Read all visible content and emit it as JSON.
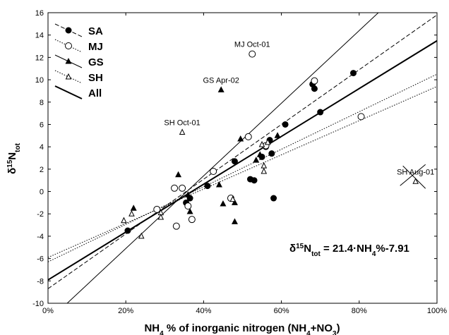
{
  "chart_data": {
    "type": "scatter",
    "xlabel": {
      "main": "NH",
      "sub1": "4",
      "mid": " % of inorganic nitrogen (NH",
      "sub2": "4",
      "tail": "+NO",
      "sub3": "3",
      "end": ")"
    },
    "ylabel": {
      "main": "δ",
      "sup": "15",
      "n": "N",
      "sub": "tot"
    },
    "xlim": [
      0,
      100
    ],
    "ylim": [
      -10,
      16
    ],
    "xticks": [
      0,
      20,
      40,
      60,
      80,
      100
    ],
    "xtick_labels": [
      "0%",
      "20%",
      "40%",
      "60%",
      "80%",
      "100%"
    ],
    "yticks": [
      -10,
      -8,
      -6,
      -4,
      -2,
      0,
      2,
      4,
      6,
      8,
      10,
      12,
      14,
      16
    ],
    "ytick_labels": [
      "-10",
      "-8",
      "-6",
      "-4",
      "-2",
      "0",
      "2",
      "4",
      "6",
      "8",
      "10",
      "12",
      "14",
      "16"
    ],
    "legend_position": "top-left",
    "grid": false,
    "series": [
      {
        "name": "SA",
        "marker": "filled-circle",
        "points": [
          [
            20.5,
            -3.5
          ],
          [
            35.5,
            -1.0
          ],
          [
            36.5,
            -0.6
          ],
          [
            41,
            0.5
          ],
          [
            48,
            2.7
          ],
          [
            52,
            1.1
          ],
          [
            53,
            1.0
          ],
          [
            55,
            3.1
          ],
          [
            56,
            4.0
          ],
          [
            57,
            4.6
          ],
          [
            57.5,
            3.4
          ],
          [
            58,
            -0.6
          ],
          [
            61,
            6.0
          ],
          [
            68,
            9.6
          ],
          [
            68.5,
            9.2
          ],
          [
            70,
            7.1
          ],
          [
            78.5,
            10.6
          ]
        ]
      },
      {
        "name": "MJ",
        "marker": "open-circle",
        "points": [
          [
            28,
            -1.6
          ],
          [
            32.5,
            0.3
          ],
          [
            33,
            -3.1
          ],
          [
            34.5,
            0.3
          ],
          [
            36,
            -1.3
          ],
          [
            37,
            -2.5
          ],
          [
            42.5,
            1.8
          ],
          [
            47,
            -0.6
          ],
          [
            51.5,
            4.9
          ],
          [
            52.5,
            12.3
          ],
          [
            56,
            4.1
          ],
          [
            68.5,
            9.9
          ],
          [
            80.5,
            6.7
          ]
        ]
      },
      {
        "name": "GS",
        "marker": "filled-triangle",
        "points": [
          [
            22,
            -1.5
          ],
          [
            33.5,
            1.5
          ],
          [
            36,
            -0.3
          ],
          [
            36.5,
            -1.8
          ],
          [
            44,
            0.6
          ],
          [
            44.5,
            9.1
          ],
          [
            45,
            -1.1
          ],
          [
            48,
            -1.0
          ],
          [
            48,
            -2.7
          ],
          [
            49.5,
            4.7
          ],
          [
            53.5,
            2.8
          ],
          [
            54.5,
            3.3
          ],
          [
            59,
            5.0
          ]
        ]
      },
      {
        "name": "SH",
        "marker": "open-triangle",
        "points": [
          [
            19.5,
            -2.6
          ],
          [
            21.5,
            -2.0
          ],
          [
            24,
            -4.0
          ],
          [
            29,
            -1.9
          ],
          [
            29,
            -2.3
          ],
          [
            34.5,
            5.3
          ],
          [
            47.5,
            -0.7
          ],
          [
            55,
            4.2
          ],
          [
            55.5,
            2.3
          ],
          [
            55.5,
            1.8
          ],
          [
            56.5,
            4.4
          ],
          [
            94.5,
            0.9
          ]
        ]
      }
    ],
    "lines": [
      {
        "name": "All",
        "style": "solid-thick",
        "slope": 21.4,
        "intercept": -7.91
      },
      {
        "name": "SA",
        "style": "dashed",
        "slope": 24.5,
        "intercept": -8.7
      },
      {
        "name": "MJ",
        "style": "dotted",
        "slope": 15.3,
        "intercept": -5.9
      },
      {
        "name": "GS",
        "style": "solid-thin",
        "slope": 32.5,
        "intercept": -11.6
      },
      {
        "name": "SH",
        "style": "dotted",
        "slope": 16.8,
        "intercept": -6.3
      }
    ],
    "annotations": [
      {
        "text": "MJ Oct-01",
        "x": 52.5,
        "y": 12.3
      },
      {
        "text": "GS Apr-02",
        "x": 44.5,
        "y": 9.1
      },
      {
        "text": "SH Oct-01",
        "x": 34.5,
        "y": 5.3
      },
      {
        "text": "SH Aug-01",
        "x": 94.5,
        "y": 0.9,
        "crossed": true
      }
    ],
    "equation": {
      "d": "δ",
      "sup": "15",
      "n": "N",
      "sub": "tot",
      "rest": " = 21.4·NH",
      "sub2": "4",
      "tail": "%-7.91"
    }
  }
}
